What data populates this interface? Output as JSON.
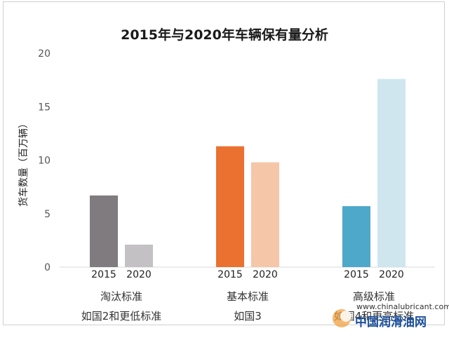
{
  "chart_data": {
    "type": "bar",
    "title": "2015年与2020年车辆保有量分析",
    "ylabel": "货车数量（百万辆）",
    "ylim": [
      0,
      20
    ],
    "yticks": [
      0,
      5,
      10,
      15,
      20
    ],
    "grid": false,
    "groups": [
      {
        "label": "淘汰标准",
        "sublabel": "如国2和更低标准",
        "bars": [
          {
            "category": "2015",
            "value": 6.7,
            "color": "#7f7b7f"
          },
          {
            "category": "2020",
            "value": 2.1,
            "color": "#c4c1c4"
          }
        ]
      },
      {
        "label": "基本标准",
        "sublabel": "如国3",
        "bars": [
          {
            "category": "2015",
            "value": 11.3,
            "color": "#ea7130"
          },
          {
            "category": "2020",
            "value": 9.8,
            "color": "#f6c6a8"
          }
        ]
      },
      {
        "label": "高级标准",
        "sublabel": "如国4和更高标准",
        "bars": [
          {
            "category": "2015",
            "value": 5.7,
            "color": "#4ea8c9"
          },
          {
            "category": "2020",
            "value": 17.6,
            "color": "#cfe6ef"
          }
        ]
      }
    ]
  },
  "watermark": {
    "url": "www.chinalubricant.com",
    "name": "中国润滑油网"
  }
}
